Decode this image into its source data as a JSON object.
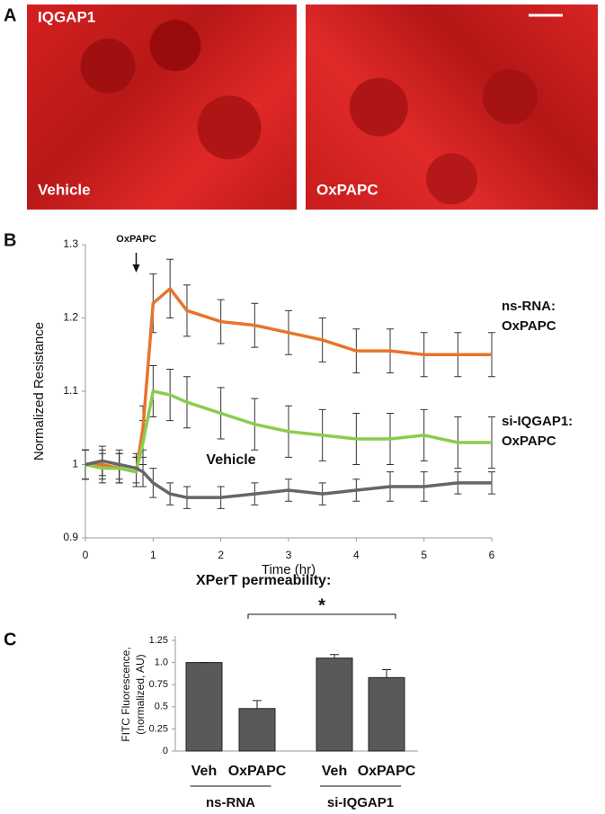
{
  "panel_labels": [
    "A",
    "B",
    "C"
  ],
  "images": [
    {
      "marker": "IQGAP1",
      "label": "Vehicle"
    },
    {
      "label": "OxPAPC"
    }
  ],
  "chart_data": [
    {
      "type": "line",
      "x_label": "Time (hr)",
      "y_label": "Normalized Resistance",
      "x": [
        0,
        0.25,
        0.5,
        0.75,
        0.85,
        1,
        1.25,
        1.5,
        2,
        2.5,
        3,
        3.5,
        4,
        4.5,
        5,
        5.5,
        6
      ],
      "xlim": [
        0,
        6
      ],
      "xticks": [
        0,
        1,
        2,
        3,
        4,
        5,
        6
      ],
      "ylim": [
        0.9,
        1.3
      ],
      "yticks": [
        0.9,
        1,
        1.1,
        1.2,
        1.3
      ],
      "annotations": [
        {
          "text": "OxPAPC",
          "x": 0.75
        }
      ],
      "series": [
        {
          "name": "ns-RNA: OxPAPC",
          "color": "#e8742a",
          "values": [
            1,
            1,
            0.995,
            0.99,
            1.05,
            1.22,
            1.24,
            1.21,
            1.195,
            1.19,
            1.18,
            1.17,
            1.155,
            1.155,
            1.15,
            1.15,
            1.15
          ],
          "errors": [
            0.02,
            0.02,
            0.02,
            0.02,
            0.03,
            0.04,
            0.04,
            0.035,
            0.03,
            0.03,
            0.03,
            0.03,
            0.03,
            0.03,
            0.03,
            0.03,
            0.03
          ]
        },
        {
          "name": "si-IQGAP1: OxPAPC",
          "color": "#8ccc4c",
          "values": [
            1,
            0.995,
            0.995,
            0.99,
            1.03,
            1.1,
            1.095,
            1.085,
            1.07,
            1.055,
            1.045,
            1.04,
            1.035,
            1.035,
            1.04,
            1.03,
            1.03
          ],
          "errors": [
            0.02,
            0.02,
            0.02,
            0.02,
            0.03,
            0.035,
            0.035,
            0.035,
            0.035,
            0.035,
            0.035,
            0.035,
            0.035,
            0.035,
            0.035,
            0.035,
            0.035
          ]
        },
        {
          "name": "Vehicle",
          "color": "#666666",
          "values": [
            1,
            1.005,
            1,
            0.995,
            0.99,
            0.975,
            0.96,
            0.955,
            0.955,
            0.96,
            0.965,
            0.96,
            0.965,
            0.97,
            0.97,
            0.975,
            0.975
          ],
          "errors": [
            0.02,
            0.02,
            0.02,
            0.02,
            0.02,
            0.02,
            0.015,
            0.015,
            0.015,
            0.015,
            0.015,
            0.015,
            0.015,
            0.02,
            0.02,
            0.015,
            0.015
          ]
        }
      ]
    },
    {
      "type": "bar",
      "title": "XPerT permeability:",
      "y_label": [
        "FITC Fluorescence,",
        "(normalized, AU)"
      ],
      "categories": [
        "Veh",
        "OxPAPC",
        "Veh",
        "OxPAPC"
      ],
      "groups": [
        "ns-RNA",
        "si-IQGAP1"
      ],
      "values": [
        1.0,
        0.48,
        1.05,
        0.83
      ],
      "errors": [
        0,
        0.09,
        0.04,
        0.09
      ],
      "color": "#595959",
      "ylim": [
        0,
        1.25
      ],
      "yticks": [
        0,
        0.25,
        0.5,
        0.75,
        {
          "value": 1,
          "label": "1.0"
        },
        1.25
      ],
      "significance": "*"
    }
  ]
}
